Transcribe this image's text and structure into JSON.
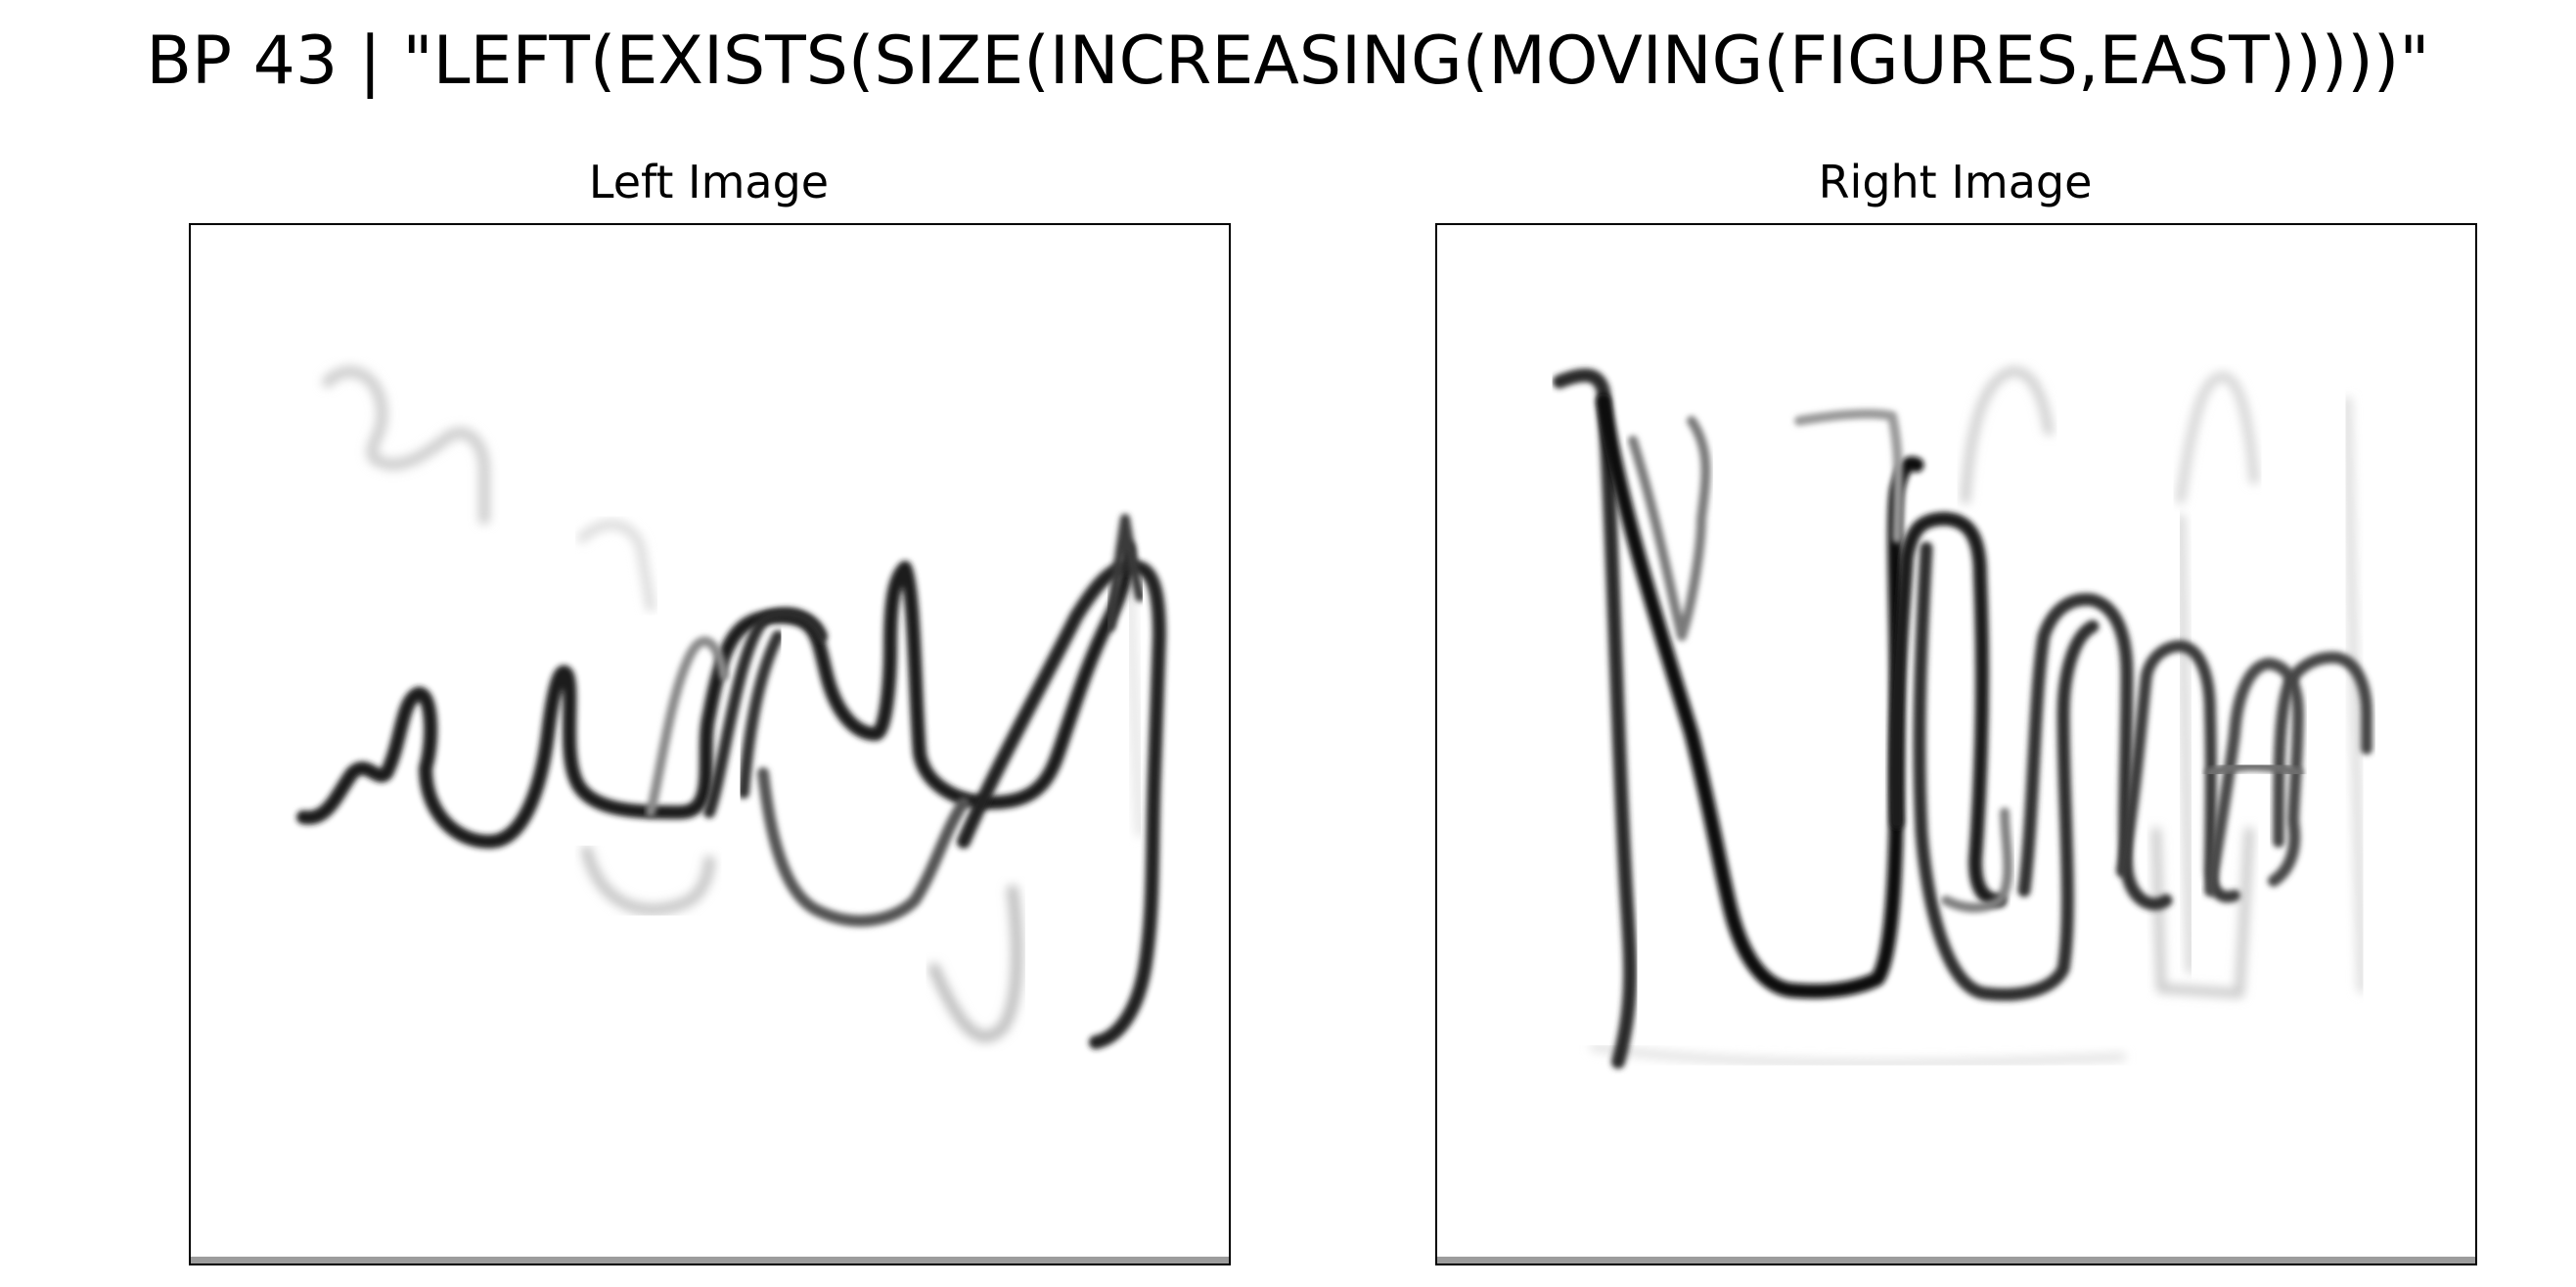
{
  "title": "BP 43 | \"LEFT(EXISTS(SIZE(INCREASING(MOVING(FIGURES,EAST)))))\"",
  "panels": {
    "left": {
      "title": "Left Image"
    },
    "right": {
      "title": "Right Image"
    }
  },
  "colors": {
    "background": "#ffffff",
    "ink": "#000000",
    "frame": "#000000"
  }
}
